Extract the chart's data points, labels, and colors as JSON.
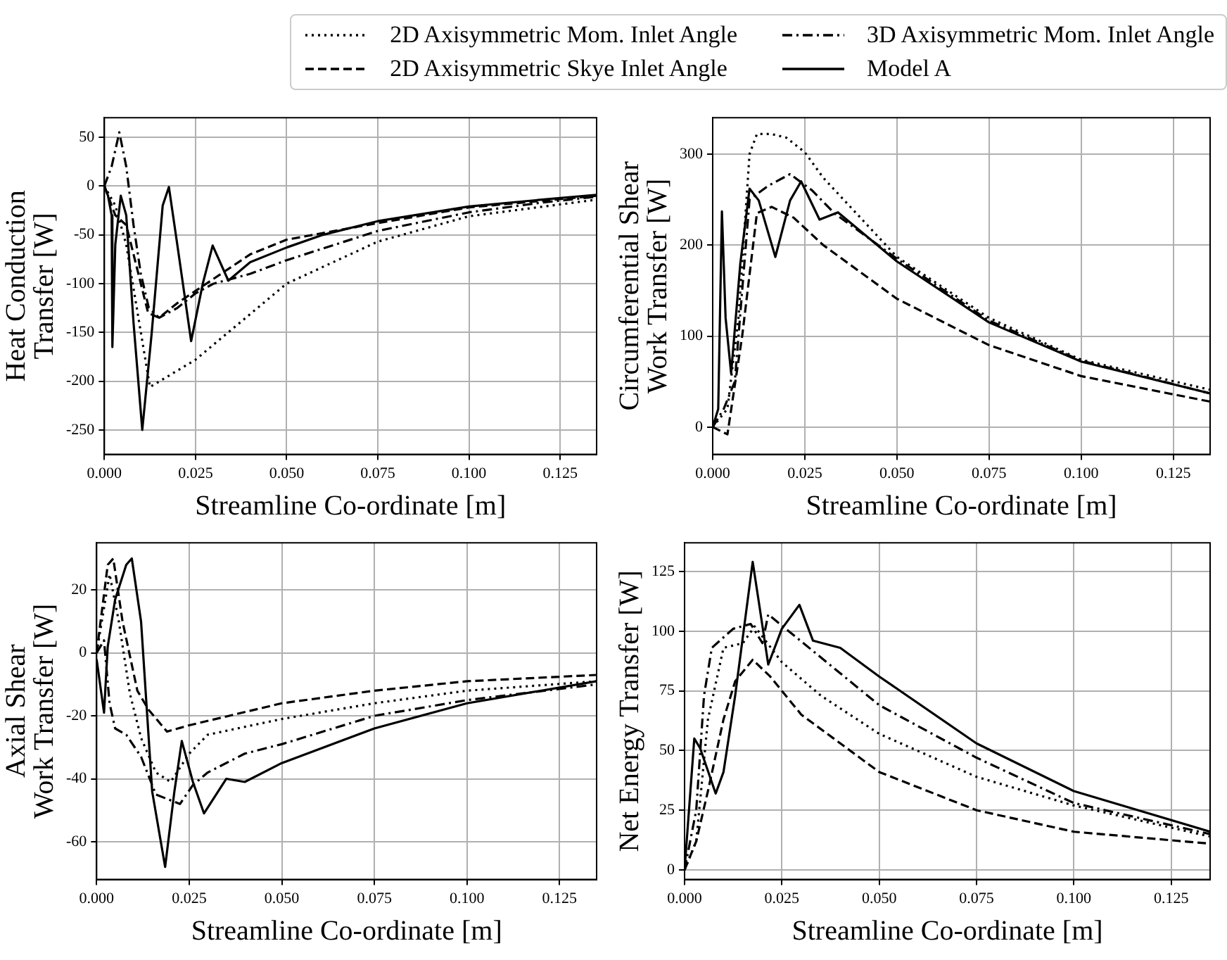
{
  "chart_data": [
    {
      "type": "line",
      "xlabel": "Streamline Co-ordinate [m]",
      "ylabel": "Heat Conduction\nTransfer [W]",
      "legend": "top",
      "grid": true,
      "xlim": [
        0,
        0.135
      ],
      "ylim": [
        -275,
        70
      ],
      "xticks": [
        {
          "value": 0,
          "label": "0.000"
        },
        {
          "value": 0.025,
          "label": "0.025"
        },
        {
          "value": 0.05,
          "label": "0.050"
        },
        {
          "value": 0.075,
          "label": "0.075"
        },
        {
          "value": 0.1,
          "label": "0.100"
        },
        {
          "value": 0.125,
          "label": "0.125"
        }
      ],
      "yticks": [
        -250,
        -200,
        -150,
        -100,
        -50,
        0,
        50
      ],
      "series": [
        {
          "name": "2D Axisymmetric Mom. Inlet Angle",
          "color": "#000000",
          "line_style": "dotted",
          "x": [
            0,
            0.003,
            0.006,
            0.0125,
            0.025,
            0.05,
            0.075,
            0.1,
            0.135
          ],
          "values": [
            0,
            -20,
            -60,
            -206,
            -178,
            -100,
            -57,
            -31,
            -14
          ]
        },
        {
          "name": "2D Axisymmetric Skye Inlet Angle",
          "color": "#000000",
          "line_style": "dashed",
          "x": [
            0,
            0.003,
            0.006,
            0.012,
            0.015,
            0.02,
            0.03,
            0.04,
            0.05,
            0.075,
            0.1,
            0.135
          ],
          "values": [
            0,
            -30,
            -40,
            -130,
            -135,
            -120,
            -95,
            -70,
            -55,
            -38,
            -22,
            -10
          ]
        },
        {
          "name": "3D Axisymmetric Mom. Inlet Angle",
          "color": "#000000",
          "line_style": "dashdot",
          "x": [
            0,
            0.002,
            0.0041,
            0.006,
            0.008,
            0.01,
            0.0122,
            0.015,
            0.02,
            0.025,
            0.03,
            0.04,
            0.05,
            0.075,
            0.1,
            0.12,
            0.135
          ],
          "values": [
            0,
            20,
            55,
            20,
            -40,
            -90,
            -125,
            -135,
            -125,
            -110,
            -100,
            -90,
            -76,
            -46,
            -27,
            -17,
            -11
          ]
        },
        {
          "name": "Model A",
          "color": "#000000",
          "line_style": "solid",
          "x": [
            0,
            0.001,
            0.002,
            0.0022,
            0.003,
            0.0045,
            0.006,
            0.008,
            0.0104,
            0.013,
            0.016,
            0.0177,
            0.02,
            0.0238,
            0.027,
            0.0297,
            0.034,
            0.04,
            0.05,
            0.06,
            0.075,
            0.1,
            0.12,
            0.135
          ],
          "values": [
            0,
            -10,
            -30,
            -165,
            -60,
            -10,
            -30,
            -140,
            -250,
            -150,
            -20,
            -1,
            -60,
            -159,
            -100,
            -61,
            -97,
            -78,
            -63,
            -50,
            -36,
            -21,
            -14,
            -9
          ]
        }
      ]
    },
    {
      "type": "line",
      "xlabel": "Streamline Co-ordinate [m]",
      "ylabel": "Circumferential Shear\nWork Transfer [W]",
      "grid": true,
      "xlim": [
        0,
        0.135
      ],
      "ylim": [
        -30,
        340
      ],
      "xticks": [
        {
          "value": 0,
          "label": "0.000"
        },
        {
          "value": 0.025,
          "label": "0.025"
        },
        {
          "value": 0.05,
          "label": "0.050"
        },
        {
          "value": 0.075,
          "label": "0.075"
        },
        {
          "value": 0.1,
          "label": "0.100"
        },
        {
          "value": 0.125,
          "label": "0.125"
        }
      ],
      "yticks": [
        0,
        100,
        200,
        300
      ],
      "series": [
        {
          "color": "#000000",
          "line_style": "dotted",
          "x": [
            0,
            0.004,
            0.007,
            0.01,
            0.012,
            0.016,
            0.02,
            0.025,
            0.03,
            0.05,
            0.075,
            0.1,
            0.135
          ],
          "values": [
            0,
            20,
            120,
            300,
            322,
            322,
            318,
            302,
            274,
            187,
            120,
            74,
            41
          ]
        },
        {
          "color": "#000000",
          "line_style": "dashed",
          "x": [
            0,
            0.004,
            0.008,
            0.012,
            0.016,
            0.022,
            0.03,
            0.05,
            0.075,
            0.1,
            0.135
          ],
          "values": [
            0,
            -8,
            100,
            235,
            242,
            230,
            200,
            141,
            90,
            56,
            28
          ]
        },
        {
          "color": "#000000",
          "line_style": "dashdot",
          "x": [
            0,
            0.003,
            0.006,
            0.01,
            0.015,
            0.021,
            0.027,
            0.033,
            0.05,
            0.075,
            0.1,
            0.135
          ],
          "values": [
            0,
            20,
            50,
            250,
            265,
            278,
            260,
            235,
            185,
            117,
            73,
            37
          ]
        },
        {
          "color": "#000000",
          "line_style": "solid",
          "x": [
            0,
            0.0015,
            0.0025,
            0.0035,
            0.005,
            0.0075,
            0.01,
            0.0125,
            0.017,
            0.021,
            0.024,
            0.029,
            0.034,
            0.05,
            0.075,
            0.1,
            0.135
          ],
          "values": [
            0,
            20,
            237,
            120,
            59,
            180,
            262,
            249,
            187,
            249,
            270,
            228,
            236,
            182,
            115,
            72,
            37
          ]
        }
      ]
    },
    {
      "type": "line",
      "xlabel": "Streamline Co-ordinate [m]",
      "ylabel": "Axial Shear\nWork Transfer [W]",
      "grid": true,
      "xlim": [
        0,
        0.135
      ],
      "ylim": [
        -72,
        35
      ],
      "xticks": [
        {
          "value": 0,
          "label": "0.000"
        },
        {
          "value": 0.025,
          "label": "0.025"
        },
        {
          "value": 0.05,
          "label": "0.050"
        },
        {
          "value": 0.075,
          "label": "0.075"
        },
        {
          "value": 0.1,
          "label": "0.100"
        },
        {
          "value": 0.125,
          "label": "0.125"
        }
      ],
      "yticks": [
        -60,
        -40,
        -20,
        0,
        20
      ],
      "series": [
        {
          "color": "#000000",
          "line_style": "dotted",
          "x": [
            0,
            0.0035,
            0.006,
            0.009,
            0.012,
            0.016,
            0.02,
            0.025,
            0.03,
            0.05,
            0.075,
            0.1,
            0.135
          ],
          "values": [
            0,
            25,
            10,
            -13,
            -27,
            -38,
            -41,
            -32,
            -26,
            -21,
            -16,
            -12,
            -9
          ]
        },
        {
          "color": "#000000",
          "line_style": "dashed",
          "x": [
            0,
            0.003,
            0.0045,
            0.007,
            0.011,
            0.014,
            0.019,
            0.025,
            0.05,
            0.075,
            0.1,
            0.135
          ],
          "values": [
            0,
            28,
            30,
            10,
            -12,
            -18,
            -25,
            -23,
            -16,
            -12,
            -9,
            -7
          ]
        },
        {
          "color": "#000000",
          "line_style": "dashdot",
          "x": [
            0,
            0.002,
            0.0035,
            0.005,
            0.008,
            0.012,
            0.016,
            0.0225,
            0.026,
            0.03,
            0.04,
            0.05,
            0.075,
            0.1,
            0.135
          ],
          "values": [
            0,
            4,
            -16,
            -24,
            -26,
            -33,
            -45,
            -48,
            -42,
            -38,
            -32,
            -29,
            -20,
            -15,
            -10
          ]
        },
        {
          "color": "#000000",
          "line_style": "solid",
          "x": [
            0,
            0.002,
            0.003,
            0.005,
            0.008,
            0.0095,
            0.012,
            0.015,
            0.0185,
            0.021,
            0.023,
            0.026,
            0.029,
            0.035,
            0.04,
            0.05,
            0.075,
            0.1,
            0.135
          ],
          "values": [
            -2,
            -19,
            2,
            17,
            28,
            30,
            10,
            -44,
            -68,
            -44,
            -28,
            -41,
            -51,
            -40,
            -41,
            -35,
            -24,
            -16,
            -9
          ]
        }
      ]
    },
    {
      "type": "line",
      "xlabel": "Streamline Co-ordinate [m]",
      "ylabel": "Net Energy Transfer [W]",
      "grid": true,
      "xlim": [
        0,
        0.135
      ],
      "ylim": [
        -4,
        137
      ],
      "xticks": [
        {
          "value": 0,
          "label": "0.000"
        },
        {
          "value": 0.025,
          "label": "0.025"
        },
        {
          "value": 0.05,
          "label": "0.050"
        },
        {
          "value": 0.075,
          "label": "0.075"
        },
        {
          "value": 0.1,
          "label": "0.100"
        },
        {
          "value": 0.125,
          "label": "0.125"
        }
      ],
      "yticks": [
        0,
        25,
        50,
        75,
        100,
        125
      ],
      "series": [
        {
          "color": "#000000",
          "line_style": "dotted",
          "x": [
            0,
            0.003,
            0.006,
            0.01,
            0.015,
            0.018,
            0.025,
            0.035,
            0.05,
            0.075,
            0.1,
            0.135
          ],
          "values": [
            0,
            12,
            63,
            93,
            95,
            102,
            87,
            73,
            57,
            39,
            27,
            14
          ]
        },
        {
          "color": "#000000",
          "line_style": "dashed",
          "x": [
            0,
            0.003,
            0.006,
            0.01,
            0.013,
            0.0175,
            0.022,
            0.03,
            0.05,
            0.075,
            0.1,
            0.135
          ],
          "values": [
            0,
            12,
            33,
            63,
            79,
            88,
            81,
            65,
            41,
            25,
            16,
            11
          ]
        },
        {
          "color": "#000000",
          "line_style": "dashdot",
          "x": [
            0,
            0.003,
            0.005,
            0.007,
            0.0125,
            0.017,
            0.02,
            0.0215,
            0.026,
            0.035,
            0.05,
            0.075,
            0.1,
            0.135
          ],
          "values": [
            0,
            25,
            73,
            93,
            101,
            103,
            95,
            107,
            101,
            89,
            69,
            47,
            28,
            15
          ]
        },
        {
          "color": "#000000",
          "line_style": "solid",
          "x": [
            0,
            0.0025,
            0.004,
            0.008,
            0.01,
            0.013,
            0.0175,
            0.019,
            0.0215,
            0.025,
            0.0295,
            0.033,
            0.04,
            0.05,
            0.075,
            0.1,
            0.135
          ],
          "values": [
            0,
            55,
            51,
            32,
            41,
            73,
            129,
            113,
            86,
            101,
            111,
            96,
            93,
            81,
            53,
            33,
            16
          ]
        }
      ]
    }
  ]
}
